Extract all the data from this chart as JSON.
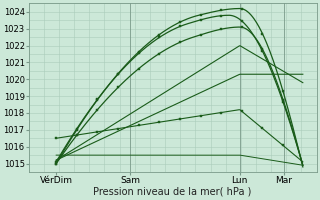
{
  "xlabel": "Pression niveau de la mer( hPa )",
  "background_color": "#cce8d8",
  "grid_color": "#aaccbb",
  "line_color": "#1a5c1a",
  "ylim": [
    1014.5,
    1024.5
  ],
  "yticks": [
    1015,
    1016,
    1017,
    1018,
    1019,
    1020,
    1021,
    1022,
    1023,
    1024
  ],
  "xtick_labels": [
    "VérDim",
    "Sam",
    "Lun",
    "Mar"
  ],
  "xtick_positions": [
    0.1,
    0.37,
    0.77,
    0.93
  ],
  "xlim": [
    0.0,
    1.05
  ],
  "series": [
    {
      "x": [
        0.1,
        0.62,
        0.77,
        1.0
      ],
      "y": [
        1015.0,
        1023.8,
        1024.2,
        1014.8
      ],
      "markers": true,
      "lw": 0.9
    },
    {
      "x": [
        0.1,
        0.58,
        0.73,
        1.0
      ],
      "y": [
        1015.1,
        1023.3,
        1023.8,
        1014.9
      ],
      "markers": true,
      "lw": 0.9
    },
    {
      "x": [
        0.1,
        0.6,
        0.77,
        1.0
      ],
      "y": [
        1015.0,
        1022.5,
        1023.1,
        1014.9
      ],
      "markers": true,
      "lw": 0.9
    },
    {
      "x": [
        0.1,
        0.77,
        1.0
      ],
      "y": [
        1015.2,
        1022.0,
        1019.8
      ],
      "markers": false,
      "lw": 0.8
    },
    {
      "x": [
        0.1,
        0.77,
        1.0
      ],
      "y": [
        1015.2,
        1020.3,
        1020.3
      ],
      "markers": false,
      "lw": 0.8
    },
    {
      "x": [
        0.1,
        0.77,
        1.0
      ],
      "y": [
        1016.5,
        1018.2,
        1015.1
      ],
      "markers": true,
      "lw": 0.8
    },
    {
      "x": [
        0.1,
        0.77,
        1.0
      ],
      "y": [
        1015.5,
        1015.5,
        1014.9
      ],
      "markers": false,
      "lw": 0.7
    }
  ],
  "marker_style": "s",
  "marker_size": 1.8
}
